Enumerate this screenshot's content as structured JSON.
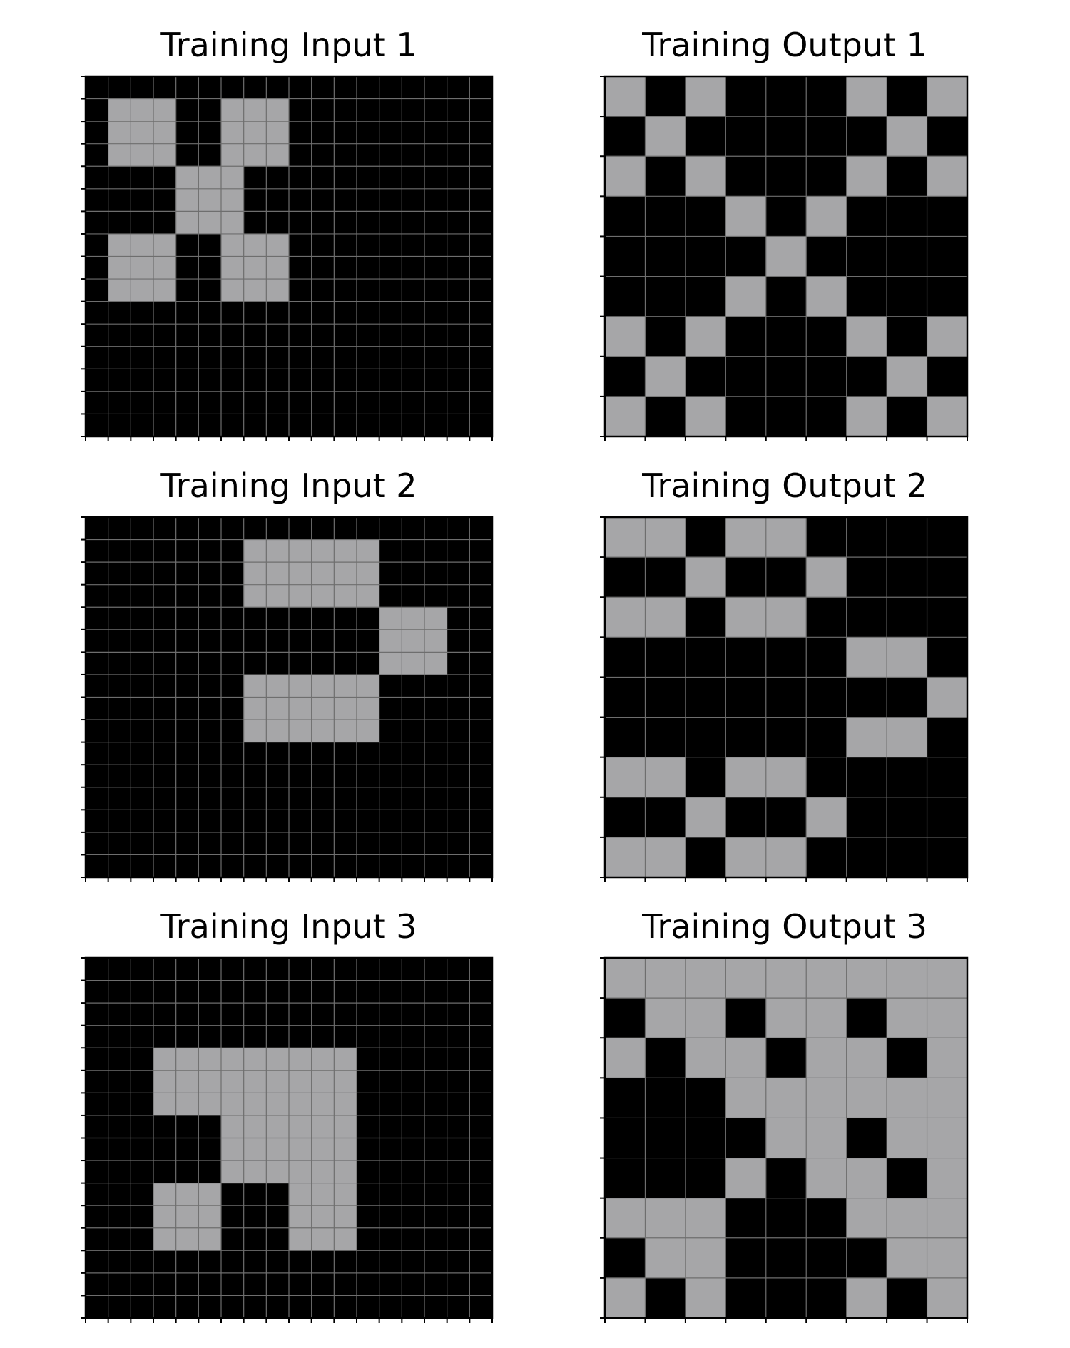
{
  "colors": {
    "black": "#000000",
    "gray": "#a6a6a8",
    "gridline": "#6e6e6e",
    "background": "#ffffff"
  },
  "panels": [
    {
      "title": "Training Input 1",
      "grid": [
        [
          0,
          0,
          0,
          0,
          0,
          0,
          0,
          0,
          0,
          0,
          0,
          0,
          0,
          0,
          0,
          0,
          0,
          0
        ],
        [
          0,
          1,
          1,
          1,
          0,
          0,
          1,
          1,
          1,
          0,
          0,
          0,
          0,
          0,
          0,
          0,
          0,
          0
        ],
        [
          0,
          1,
          1,
          1,
          0,
          0,
          1,
          1,
          1,
          0,
          0,
          0,
          0,
          0,
          0,
          0,
          0,
          0
        ],
        [
          0,
          1,
          1,
          1,
          0,
          0,
          1,
          1,
          1,
          0,
          0,
          0,
          0,
          0,
          0,
          0,
          0,
          0
        ],
        [
          0,
          0,
          0,
          0,
          1,
          1,
          1,
          0,
          0,
          0,
          0,
          0,
          0,
          0,
          0,
          0,
          0,
          0
        ],
        [
          0,
          0,
          0,
          0,
          1,
          1,
          1,
          0,
          0,
          0,
          0,
          0,
          0,
          0,
          0,
          0,
          0,
          0
        ],
        [
          0,
          0,
          0,
          0,
          1,
          1,
          1,
          0,
          0,
          0,
          0,
          0,
          0,
          0,
          0,
          0,
          0,
          0
        ],
        [
          0,
          1,
          1,
          1,
          0,
          0,
          1,
          1,
          1,
          0,
          0,
          0,
          0,
          0,
          0,
          0,
          0,
          0
        ],
        [
          0,
          1,
          1,
          1,
          0,
          0,
          1,
          1,
          1,
          0,
          0,
          0,
          0,
          0,
          0,
          0,
          0,
          0
        ],
        [
          0,
          1,
          1,
          1,
          0,
          0,
          1,
          1,
          1,
          0,
          0,
          0,
          0,
          0,
          0,
          0,
          0,
          0
        ],
        [
          0,
          0,
          0,
          0,
          0,
          0,
          0,
          0,
          0,
          0,
          0,
          0,
          0,
          0,
          0,
          0,
          0,
          0
        ],
        [
          0,
          0,
          0,
          0,
          0,
          0,
          0,
          0,
          0,
          0,
          0,
          0,
          0,
          0,
          0,
          0,
          0,
          0
        ],
        [
          0,
          0,
          0,
          0,
          0,
          0,
          0,
          0,
          0,
          0,
          0,
          0,
          0,
          0,
          0,
          0,
          0,
          0
        ],
        [
          0,
          0,
          0,
          0,
          0,
          0,
          0,
          0,
          0,
          0,
          0,
          0,
          0,
          0,
          0,
          0,
          0,
          0
        ],
        [
          0,
          0,
          0,
          0,
          0,
          0,
          0,
          0,
          0,
          0,
          0,
          0,
          0,
          0,
          0,
          0,
          0,
          0
        ],
        [
          0,
          0,
          0,
          0,
          0,
          0,
          0,
          0,
          0,
          0,
          0,
          0,
          0,
          0,
          0,
          0,
          0,
          0
        ]
      ]
    },
    {
      "title": "Training Output 1",
      "grid": [
        [
          1,
          0,
          1,
          0,
          0,
          0,
          1,
          0,
          1
        ],
        [
          0,
          1,
          0,
          0,
          0,
          0,
          0,
          1,
          0
        ],
        [
          1,
          0,
          1,
          0,
          0,
          0,
          1,
          0,
          1
        ],
        [
          0,
          0,
          0,
          1,
          0,
          1,
          0,
          0,
          0
        ],
        [
          0,
          0,
          0,
          0,
          1,
          0,
          0,
          0,
          0
        ],
        [
          0,
          0,
          0,
          1,
          0,
          1,
          0,
          0,
          0
        ],
        [
          1,
          0,
          1,
          0,
          0,
          0,
          1,
          0,
          1
        ],
        [
          0,
          1,
          0,
          0,
          0,
          0,
          0,
          1,
          0
        ],
        [
          1,
          0,
          1,
          0,
          0,
          0,
          1,
          0,
          1
        ]
      ]
    },
    {
      "title": "Training Input 2",
      "grid": [
        [
          0,
          0,
          0,
          0,
          0,
          0,
          0,
          0,
          0,
          0,
          0,
          0,
          0,
          0,
          0,
          0,
          0,
          0
        ],
        [
          0,
          0,
          0,
          0,
          0,
          0,
          0,
          1,
          1,
          1,
          1,
          1,
          1,
          0,
          0,
          0,
          0,
          0
        ],
        [
          0,
          0,
          0,
          0,
          0,
          0,
          0,
          1,
          1,
          1,
          1,
          1,
          1,
          0,
          0,
          0,
          0,
          0
        ],
        [
          0,
          0,
          0,
          0,
          0,
          0,
          0,
          1,
          1,
          1,
          1,
          1,
          1,
          0,
          0,
          0,
          0,
          0
        ],
        [
          0,
          0,
          0,
          0,
          0,
          0,
          0,
          0,
          0,
          0,
          0,
          0,
          0,
          1,
          1,
          1,
          0,
          0
        ],
        [
          0,
          0,
          0,
          0,
          0,
          0,
          0,
          0,
          0,
          0,
          0,
          0,
          0,
          1,
          1,
          1,
          0,
          0
        ],
        [
          0,
          0,
          0,
          0,
          0,
          0,
          0,
          0,
          0,
          0,
          0,
          0,
          0,
          1,
          1,
          1,
          0,
          0
        ],
        [
          0,
          0,
          0,
          0,
          0,
          0,
          0,
          1,
          1,
          1,
          1,
          1,
          1,
          0,
          0,
          0,
          0,
          0
        ],
        [
          0,
          0,
          0,
          0,
          0,
          0,
          0,
          1,
          1,
          1,
          1,
          1,
          1,
          0,
          0,
          0,
          0,
          0
        ],
        [
          0,
          0,
          0,
          0,
          0,
          0,
          0,
          1,
          1,
          1,
          1,
          1,
          1,
          0,
          0,
          0,
          0,
          0
        ],
        [
          0,
          0,
          0,
          0,
          0,
          0,
          0,
          0,
          0,
          0,
          0,
          0,
          0,
          0,
          0,
          0,
          0,
          0
        ],
        [
          0,
          0,
          0,
          0,
          0,
          0,
          0,
          0,
          0,
          0,
          0,
          0,
          0,
          0,
          0,
          0,
          0,
          0
        ],
        [
          0,
          0,
          0,
          0,
          0,
          0,
          0,
          0,
          0,
          0,
          0,
          0,
          0,
          0,
          0,
          0,
          0,
          0
        ],
        [
          0,
          0,
          0,
          0,
          0,
          0,
          0,
          0,
          0,
          0,
          0,
          0,
          0,
          0,
          0,
          0,
          0,
          0
        ],
        [
          0,
          0,
          0,
          0,
          0,
          0,
          0,
          0,
          0,
          0,
          0,
          0,
          0,
          0,
          0,
          0,
          0,
          0
        ],
        [
          0,
          0,
          0,
          0,
          0,
          0,
          0,
          0,
          0,
          0,
          0,
          0,
          0,
          0,
          0,
          0,
          0,
          0
        ]
      ]
    },
    {
      "title": "Training Output 2",
      "grid": [
        [
          1,
          1,
          0,
          1,
          1,
          0,
          0,
          0,
          0
        ],
        [
          0,
          0,
          1,
          0,
          0,
          1,
          0,
          0,
          0
        ],
        [
          1,
          1,
          0,
          1,
          1,
          0,
          0,
          0,
          0
        ],
        [
          0,
          0,
          0,
          0,
          0,
          0,
          1,
          1,
          0
        ],
        [
          0,
          0,
          0,
          0,
          0,
          0,
          0,
          0,
          1
        ],
        [
          0,
          0,
          0,
          0,
          0,
          0,
          1,
          1,
          0
        ],
        [
          1,
          1,
          0,
          1,
          1,
          0,
          0,
          0,
          0
        ],
        [
          0,
          0,
          1,
          0,
          0,
          1,
          0,
          0,
          0
        ],
        [
          1,
          1,
          0,
          1,
          1,
          0,
          0,
          0,
          0
        ]
      ]
    },
    {
      "title": "Training Input 3",
      "grid": [
        [
          0,
          0,
          0,
          0,
          0,
          0,
          0,
          0,
          0,
          0,
          0,
          0,
          0,
          0,
          0,
          0,
          0,
          0
        ],
        [
          0,
          0,
          0,
          0,
          0,
          0,
          0,
          0,
          0,
          0,
          0,
          0,
          0,
          0,
          0,
          0,
          0,
          0
        ],
        [
          0,
          0,
          0,
          0,
          0,
          0,
          0,
          0,
          0,
          0,
          0,
          0,
          0,
          0,
          0,
          0,
          0,
          0
        ],
        [
          0,
          0,
          0,
          0,
          0,
          0,
          0,
          0,
          0,
          0,
          0,
          0,
          0,
          0,
          0,
          0,
          0,
          0
        ],
        [
          0,
          0,
          0,
          1,
          1,
          1,
          1,
          1,
          1,
          1,
          1,
          1,
          0,
          0,
          0,
          0,
          0,
          0
        ],
        [
          0,
          0,
          0,
          1,
          1,
          1,
          1,
          1,
          1,
          1,
          1,
          1,
          0,
          0,
          0,
          0,
          0,
          0
        ],
        [
          0,
          0,
          0,
          1,
          1,
          1,
          1,
          1,
          1,
          1,
          1,
          1,
          0,
          0,
          0,
          0,
          0,
          0
        ],
        [
          0,
          0,
          0,
          0,
          0,
          0,
          1,
          1,
          1,
          1,
          1,
          1,
          0,
          0,
          0,
          0,
          0,
          0
        ],
        [
          0,
          0,
          0,
          0,
          0,
          0,
          1,
          1,
          1,
          1,
          1,
          1,
          0,
          0,
          0,
          0,
          0,
          0
        ],
        [
          0,
          0,
          0,
          0,
          0,
          0,
          1,
          1,
          1,
          1,
          1,
          1,
          0,
          0,
          0,
          0,
          0,
          0
        ],
        [
          0,
          0,
          0,
          1,
          1,
          1,
          0,
          0,
          0,
          1,
          1,
          1,
          0,
          0,
          0,
          0,
          0,
          0
        ],
        [
          0,
          0,
          0,
          1,
          1,
          1,
          0,
          0,
          0,
          1,
          1,
          1,
          0,
          0,
          0,
          0,
          0,
          0
        ],
        [
          0,
          0,
          0,
          1,
          1,
          1,
          0,
          0,
          0,
          1,
          1,
          1,
          0,
          0,
          0,
          0,
          0,
          0
        ],
        [
          0,
          0,
          0,
          0,
          0,
          0,
          0,
          0,
          0,
          0,
          0,
          0,
          0,
          0,
          0,
          0,
          0,
          0
        ],
        [
          0,
          0,
          0,
          0,
          0,
          0,
          0,
          0,
          0,
          0,
          0,
          0,
          0,
          0,
          0,
          0,
          0,
          0
        ],
        [
          0,
          0,
          0,
          0,
          0,
          0,
          0,
          0,
          0,
          0,
          0,
          0,
          0,
          0,
          0,
          0,
          0,
          0
        ]
      ]
    },
    {
      "title": "Training Output 3",
      "grid": [
        [
          1,
          1,
          1,
          1,
          1,
          1,
          1,
          1,
          1
        ],
        [
          0,
          1,
          1,
          0,
          1,
          1,
          0,
          1,
          1
        ],
        [
          1,
          0,
          1,
          1,
          0,
          1,
          1,
          0,
          1
        ],
        [
          0,
          0,
          0,
          1,
          1,
          1,
          1,
          1,
          1
        ],
        [
          0,
          0,
          0,
          0,
          1,
          1,
          0,
          1,
          1
        ],
        [
          0,
          0,
          0,
          1,
          0,
          1,
          1,
          0,
          1
        ],
        [
          1,
          1,
          1,
          0,
          0,
          0,
          1,
          1,
          1
        ],
        [
          0,
          1,
          1,
          0,
          0,
          0,
          0,
          1,
          1
        ],
        [
          1,
          0,
          1,
          0,
          0,
          0,
          1,
          0,
          1
        ]
      ]
    }
  ]
}
